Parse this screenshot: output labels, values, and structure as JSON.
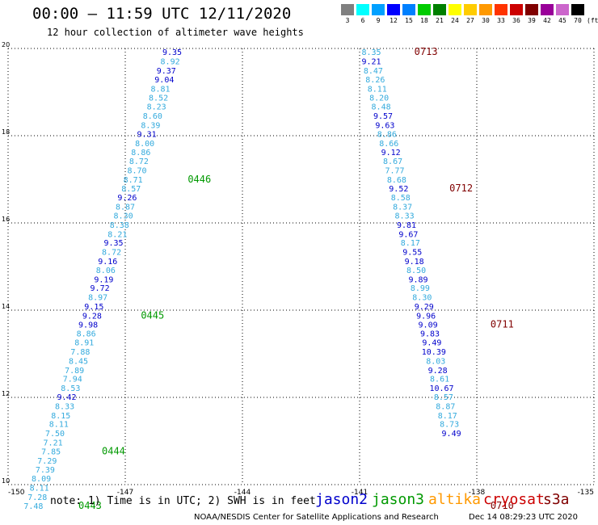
{
  "header": {
    "title": "00:00 – 11:59 UTC 12/11/2020",
    "subtitle": "12 hour collection of altimeter wave heights"
  },
  "color_scale": {
    "labels": [
      "3",
      "6",
      "9",
      "12",
      "15",
      "18",
      "21",
      "24",
      "27",
      "30",
      "33",
      "36",
      "39",
      "42",
      "45",
      "70"
    ],
    "unit": "(ft)",
    "colors": [
      "#808080",
      "#00ffff",
      "#00a0ff",
      "#0000ff",
      "#0080ff",
      "#00cc00",
      "#008000",
      "#ffff00",
      "#ffcc00",
      "#ff9900",
      "#ff3300",
      "#cc0000",
      "#800000",
      "#990099",
      "#cc66cc",
      "#000000"
    ]
  },
  "footer": {
    "note": "note: 1) Time is in UTC; 2) SWH is in feet",
    "credit": "NOAA/NESDIS Center for Satellite Applications and Research",
    "timestamp": "Dec 14 08:29:23 UTC 2020",
    "legend": [
      {
        "name": "jason2",
        "color": "#0000cc"
      },
      {
        "name": "jason3",
        "color": "#009900"
      },
      {
        "name": "altika",
        "color": "#ff9900"
      },
      {
        "name": "cryosat",
        "color": "#cc0000"
      },
      {
        "name": "s3a",
        "color": "#800000"
      }
    ]
  },
  "chart_data": {
    "type": "scatter",
    "x_range": [
      -150,
      -135
    ],
    "y_range": [
      10,
      20
    ],
    "x_ticks": [
      "-150",
      "-147",
      "-144",
      "-141",
      "-138",
      "-135"
    ],
    "y_ticks": [
      "10",
      "12",
      "14",
      "16",
      "18",
      "20"
    ],
    "grid": true,
    "series": [
      {
        "name": "jason3",
        "color_key": "jason3",
        "points": [
          {
            "lon": -145.8,
            "lat": 19.85,
            "swh": "9.35",
            "c": "#0000cc"
          },
          {
            "lon": -145.85,
            "lat": 19.64,
            "swh": "8.92",
            "c": "#33aadd"
          },
          {
            "lon": -145.95,
            "lat": 19.43,
            "swh": "9.37",
            "c": "#0000cc"
          },
          {
            "lon": -146.0,
            "lat": 19.22,
            "swh": "9.04",
            "c": "#0000cc"
          },
          {
            "lon": -146.1,
            "lat": 19.01,
            "swh": "8.81",
            "c": "#33aadd"
          },
          {
            "lon": -146.15,
            "lat": 18.81,
            "swh": "8.52",
            "c": "#33aadd"
          },
          {
            "lon": -146.2,
            "lat": 18.6,
            "swh": "8.23",
            "c": "#33aadd"
          },
          {
            "lon": -146.3,
            "lat": 18.39,
            "swh": "8.60",
            "c": "#33aadd"
          },
          {
            "lon": -146.35,
            "lat": 18.18,
            "swh": "8.39",
            "c": "#33aadd"
          },
          {
            "lon": -146.45,
            "lat": 17.97,
            "swh": "9.31",
            "c": "#0000cc"
          },
          {
            "lon": -146.5,
            "lat": 17.76,
            "swh": "8.00",
            "c": "#33aadd"
          },
          {
            "lon": -146.6,
            "lat": 17.56,
            "swh": "8.86",
            "c": "#33aadd"
          },
          {
            "lon": -146.65,
            "lat": 17.35,
            "swh": "8.72",
            "c": "#33aadd"
          },
          {
            "lon": -146.7,
            "lat": 17.14,
            "swh": "8.70",
            "c": "#33aadd"
          },
          {
            "lon": -146.8,
            "lat": 16.93,
            "swh": "8.71",
            "c": "#33aadd"
          },
          {
            "lon": -146.85,
            "lat": 16.72,
            "swh": "8.57",
            "c": "#33aadd"
          },
          {
            "lon": -146.95,
            "lat": 16.52,
            "swh": "9.26",
            "c": "#0000cc"
          },
          {
            "lon": -147.0,
            "lat": 16.31,
            "swh": "8.87",
            "c": "#33aadd"
          },
          {
            "lon": -147.05,
            "lat": 16.1,
            "swh": "8.30",
            "c": "#33aadd"
          },
          {
            "lon": -147.15,
            "lat": 15.89,
            "swh": "8.38",
            "c": "#33aadd"
          },
          {
            "lon": -147.2,
            "lat": 15.68,
            "swh": "8.21",
            "c": "#33aadd"
          },
          {
            "lon": -147.3,
            "lat": 15.48,
            "swh": "9.35",
            "c": "#0000cc"
          },
          {
            "lon": -147.35,
            "lat": 15.27,
            "swh": "8.72",
            "c": "#33aadd"
          },
          {
            "lon": -147.45,
            "lat": 15.06,
            "swh": "9.16",
            "c": "#0000cc"
          },
          {
            "lon": -147.5,
            "lat": 14.85,
            "swh": "8.06",
            "c": "#33aadd"
          },
          {
            "lon": -147.55,
            "lat": 14.64,
            "swh": "9.19",
            "c": "#0000cc"
          },
          {
            "lon": -147.65,
            "lat": 14.44,
            "swh": "9.72",
            "c": "#0000cc"
          },
          {
            "lon": -147.7,
            "lat": 14.23,
            "swh": "8.97",
            "c": "#33aadd"
          },
          {
            "lon": -147.8,
            "lat": 14.02,
            "swh": "9.15",
            "c": "#0000cc"
          },
          {
            "lon": -147.85,
            "lat": 13.81,
            "swh": "9.28",
            "c": "#0000cc"
          },
          {
            "lon": -147.95,
            "lat": 13.6,
            "swh": "9.98",
            "c": "#0000cc"
          },
          {
            "lon": -148.0,
            "lat": 13.4,
            "swh": "8.86",
            "c": "#33aadd"
          },
          {
            "lon": -148.05,
            "lat": 13.19,
            "swh": "8.91",
            "c": "#33aadd"
          },
          {
            "lon": -148.15,
            "lat": 12.98,
            "swh": "7.88",
            "c": "#33aadd"
          },
          {
            "lon": -148.2,
            "lat": 12.77,
            "swh": "8.45",
            "c": "#33aadd"
          },
          {
            "lon": -148.3,
            "lat": 12.56,
            "swh": "7.89",
            "c": "#33aadd"
          },
          {
            "lon": -148.35,
            "lat": 12.36,
            "swh": "7.94",
            "c": "#33aadd"
          },
          {
            "lon": -148.4,
            "lat": 12.15,
            "swh": "8.53",
            "c": "#33aadd"
          },
          {
            "lon": -148.5,
            "lat": 11.94,
            "swh": "9.42",
            "c": "#0000cc"
          },
          {
            "lon": -148.55,
            "lat": 11.73,
            "swh": "8.33",
            "c": "#33aadd"
          },
          {
            "lon": -148.65,
            "lat": 11.52,
            "swh": "8.15",
            "c": "#33aadd"
          },
          {
            "lon": -148.7,
            "lat": 11.32,
            "swh": "8.11",
            "c": "#33aadd"
          },
          {
            "lon": -148.8,
            "lat": 11.11,
            "swh": "7.50",
            "c": "#33aadd"
          },
          {
            "lon": -148.85,
            "lat": 10.9,
            "swh": "7.21",
            "c": "#33aadd"
          },
          {
            "lon": -148.9,
            "lat": 10.69,
            "swh": "7.85",
            "c": "#33aadd"
          },
          {
            "lon": -149.0,
            "lat": 10.48,
            "swh": "7.29",
            "c": "#33aadd"
          },
          {
            "lon": -149.05,
            "lat": 10.28,
            "swh": "7.39",
            "c": "#33aadd"
          },
          {
            "lon": -149.15,
            "lat": 10.07,
            "swh": "8.09",
            "c": "#33aadd"
          },
          {
            "lon": -149.2,
            "lat": 9.86,
            "swh": "8.11",
            "c": "#33aadd"
          },
          {
            "lon": -149.25,
            "lat": 9.65,
            "swh": "7.28",
            "c": "#33aadd"
          },
          {
            "lon": -149.35,
            "lat": 9.44,
            "swh": "7.48",
            "c": "#33aadd"
          }
        ]
      },
      {
        "name": "s3a",
        "color_key": "s3a",
        "points": [
          {
            "lon": -140.7,
            "lat": 19.85,
            "swh": "8.35",
            "c": "#33aadd"
          },
          {
            "lon": -140.7,
            "lat": 19.64,
            "swh": "9.21",
            "c": "#0000cc"
          },
          {
            "lon": -140.65,
            "lat": 19.43,
            "swh": "8.47",
            "c": "#33aadd"
          },
          {
            "lon": -140.6,
            "lat": 19.22,
            "swh": "8.26",
            "c": "#33aadd"
          },
          {
            "lon": -140.55,
            "lat": 19.01,
            "swh": "8.11",
            "c": "#33aadd"
          },
          {
            "lon": -140.5,
            "lat": 18.81,
            "swh": "8.20",
            "c": "#33aadd"
          },
          {
            "lon": -140.45,
            "lat": 18.6,
            "swh": "8.48",
            "c": "#33aadd"
          },
          {
            "lon": -140.4,
            "lat": 18.39,
            "swh": "9.57",
            "c": "#0000cc"
          },
          {
            "lon": -140.35,
            "lat": 18.18,
            "swh": "9.63",
            "c": "#0000cc"
          },
          {
            "lon": -140.3,
            "lat": 17.97,
            "swh": "8.86",
            "c": "#33aadd"
          },
          {
            "lon": -140.25,
            "lat": 17.76,
            "swh": "8.66",
            "c": "#33aadd"
          },
          {
            "lon": -140.2,
            "lat": 17.56,
            "swh": "9.12",
            "c": "#0000cc"
          },
          {
            "lon": -140.15,
            "lat": 17.35,
            "swh": "8.67",
            "c": "#33aadd"
          },
          {
            "lon": -140.1,
            "lat": 17.14,
            "swh": "7.77",
            "c": "#33aadd"
          },
          {
            "lon": -140.05,
            "lat": 16.93,
            "swh": "8.68",
            "c": "#33aadd"
          },
          {
            "lon": -140.0,
            "lat": 16.72,
            "swh": "9.52",
            "c": "#0000cc"
          },
          {
            "lon": -139.95,
            "lat": 16.52,
            "swh": "8.58",
            "c": "#33aadd"
          },
          {
            "lon": -139.9,
            "lat": 16.31,
            "swh": "8.37",
            "c": "#33aadd"
          },
          {
            "lon": -139.85,
            "lat": 16.1,
            "swh": "8.33",
            "c": "#33aadd"
          },
          {
            "lon": -139.8,
            "lat": 15.89,
            "swh": "9.81",
            "c": "#0000cc"
          },
          {
            "lon": -139.75,
            "lat": 15.68,
            "swh": "9.67",
            "c": "#0000cc"
          },
          {
            "lon": -139.7,
            "lat": 15.48,
            "swh": "8.17",
            "c": "#33aadd"
          },
          {
            "lon": -139.65,
            "lat": 15.27,
            "swh": "9.55",
            "c": "#0000cc"
          },
          {
            "lon": -139.6,
            "lat": 15.06,
            "swh": "9.18",
            "c": "#0000cc"
          },
          {
            "lon": -139.55,
            "lat": 14.85,
            "swh": "8.50",
            "c": "#33aadd"
          },
          {
            "lon": -139.5,
            "lat": 14.64,
            "swh": "9.89",
            "c": "#0000cc"
          },
          {
            "lon": -139.45,
            "lat": 14.44,
            "swh": "8.99",
            "c": "#33aadd"
          },
          {
            "lon": -139.4,
            "lat": 14.23,
            "swh": "8.30",
            "c": "#33aadd"
          },
          {
            "lon": -139.35,
            "lat": 14.02,
            "swh": "9.29",
            "c": "#0000cc"
          },
          {
            "lon": -139.3,
            "lat": 13.81,
            "swh": "9.96",
            "c": "#0000cc"
          },
          {
            "lon": -139.25,
            "lat": 13.6,
            "swh": "9.09",
            "c": "#0000cc"
          },
          {
            "lon": -139.2,
            "lat": 13.4,
            "swh": "9.83",
            "c": "#0000cc"
          },
          {
            "lon": -139.15,
            "lat": 13.19,
            "swh": "9.49",
            "c": "#0000cc"
          },
          {
            "lon": -139.1,
            "lat": 12.98,
            "swh": "10.39",
            "c": "#0000cc"
          },
          {
            "lon": -139.05,
            "lat": 12.77,
            "swh": "8.03",
            "c": "#33aadd"
          },
          {
            "lon": -139.0,
            "lat": 12.56,
            "swh": "9.28",
            "c": "#0000cc"
          },
          {
            "lon": -138.95,
            "lat": 12.36,
            "swh": "8.61",
            "c": "#33aadd"
          },
          {
            "lon": -138.9,
            "lat": 12.15,
            "swh": "10.67",
            "c": "#0000cc"
          },
          {
            "lon": -138.85,
            "lat": 11.94,
            "swh": "8.57",
            "c": "#33aadd"
          },
          {
            "lon": -138.8,
            "lat": 11.73,
            "swh": "8.87",
            "c": "#33aadd"
          },
          {
            "lon": -138.75,
            "lat": 11.52,
            "swh": "8.17",
            "c": "#33aadd"
          },
          {
            "lon": -138.7,
            "lat": 11.32,
            "swh": "8.73",
            "c": "#33aadd"
          },
          {
            "lon": -138.65,
            "lat": 11.11,
            "swh": "9.49",
            "c": "#0000cc"
          }
        ]
      }
    ],
    "time_labels": [
      {
        "text": "0446",
        "lon": -145.4,
        "lat": 16.93,
        "color": "#009900"
      },
      {
        "text": "0445",
        "lon": -146.6,
        "lat": 13.81,
        "color": "#009900"
      },
      {
        "text": "0444",
        "lon": -147.6,
        "lat": 10.69,
        "color": "#009900"
      },
      {
        "text": "0443",
        "lon": -148.2,
        "lat": 9.44,
        "color": "#009900"
      },
      {
        "text": "0713",
        "lon": -139.6,
        "lat": 19.85,
        "color": "#800000"
      },
      {
        "text": "0712",
        "lon": -138.7,
        "lat": 16.72,
        "color": "#800000"
      },
      {
        "text": "0711",
        "lon": -137.65,
        "lat": 13.6,
        "color": "#800000"
      },
      {
        "text": "0710",
        "lon": -137.65,
        "lat": 9.44,
        "color": "#800000"
      }
    ]
  }
}
